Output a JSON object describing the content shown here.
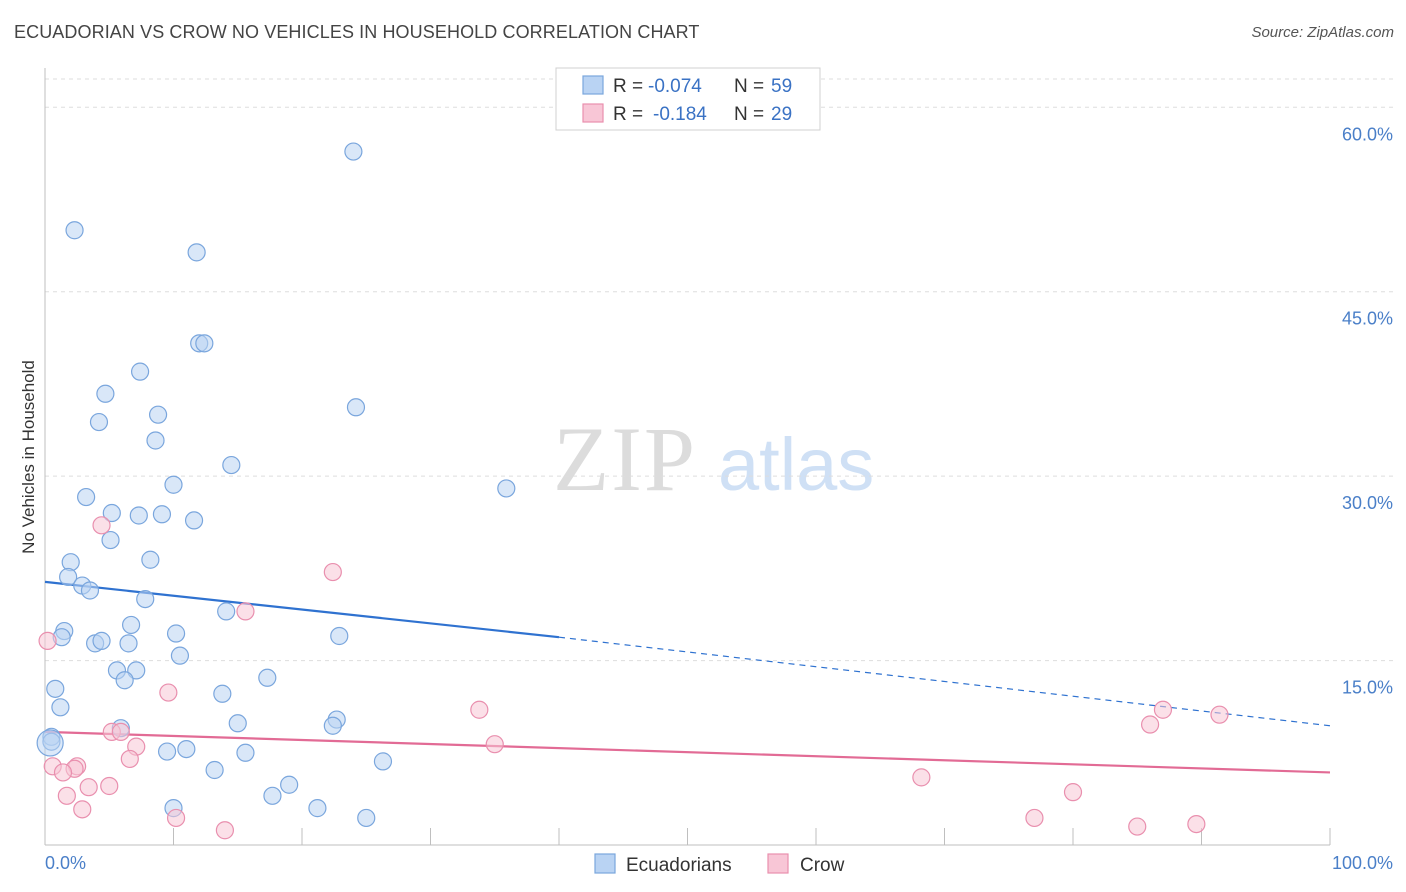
{
  "title": "ECUADORIAN VS CROW NO VEHICLES IN HOUSEHOLD CORRELATION CHART",
  "source": "Source: ZipAtlas.com",
  "watermark": {
    "zip": "ZIP",
    "atlas": "atlas"
  },
  "colors": {
    "blue_fill": "#b9d3f3",
    "blue_stroke": "#7aa6dd",
    "blue_line": "#2f72d0",
    "pink_fill": "#f8c6d6",
    "pink_stroke": "#e98fae",
    "pink_line": "#e26b95",
    "tick_text": "#4a7fc8",
    "grid": "#dddddd"
  },
  "legend": {
    "items": [
      {
        "r_label": "R =",
        "r_value": "-0.074",
        "n_label": "N =",
        "n_value": "59",
        "color": "blue"
      },
      {
        "r_label": "R =",
        "r_value": "-0.184",
        "n_label": "N =",
        "n_value": "29",
        "color": "pink"
      }
    ]
  },
  "bottom_legend": [
    "Ecuadorians",
    "Crow"
  ],
  "chart_data": {
    "type": "scatter",
    "title": "ECUADORIAN VS CROW NO VEHICLES IN HOUSEHOLD CORRELATION CHART",
    "xlabel": "",
    "ylabel": "No Vehicles in Household",
    "xlim": [
      0,
      100
    ],
    "ylim": [
      0,
      60
    ],
    "x_tick_labels": [
      "0.0%",
      "100.0%"
    ],
    "y_ticks": [
      15,
      30,
      45,
      60
    ],
    "y_tick_labels": [
      "15.0%",
      "30.0%",
      "45.0%",
      "60.0%"
    ],
    "grid": true,
    "legend_position": "top-center",
    "series": [
      {
        "name": "Ecuadorians",
        "color": "blue",
        "trend": {
          "x0": 0,
          "y0": 21.4,
          "x1": 40,
          "y1": 16.9,
          "dashed_to_x": 100,
          "dashed_to_y": 9.7
        },
        "points": [
          [
            24,
            56.4
          ],
          [
            2.3,
            50
          ],
          [
            11.8,
            48.2
          ],
          [
            12,
            40.8
          ],
          [
            12.4,
            40.8
          ],
          [
            7.4,
            38.5
          ],
          [
            4.7,
            36.7
          ],
          [
            24.2,
            35.6
          ],
          [
            4.2,
            34.4
          ],
          [
            8.8,
            35
          ],
          [
            8.6,
            32.9
          ],
          [
            14.5,
            30.9
          ],
          [
            10,
            29.3
          ],
          [
            35.9,
            29
          ],
          [
            3.2,
            28.3
          ],
          [
            5.2,
            27
          ],
          [
            7.3,
            26.8
          ],
          [
            9.1,
            26.9
          ],
          [
            11.6,
            26.4
          ],
          [
            5.1,
            24.8
          ],
          [
            8.2,
            23.2
          ],
          [
            2,
            23
          ],
          [
            1.8,
            21.8
          ],
          [
            2.9,
            21.1
          ],
          [
            3.5,
            20.7
          ],
          [
            7.8,
            20
          ],
          [
            14.1,
            19
          ],
          [
            1.5,
            17.4
          ],
          [
            6.7,
            17.9
          ],
          [
            10.2,
            17.2
          ],
          [
            22.9,
            17
          ],
          [
            1.3,
            16.9
          ],
          [
            3.9,
            16.4
          ],
          [
            4.4,
            16.6
          ],
          [
            6.5,
            16.4
          ],
          [
            10.5,
            15.4
          ],
          [
            5.6,
            14.2
          ],
          [
            7.1,
            14.2
          ],
          [
            6.2,
            13.4
          ],
          [
            17.3,
            13.6
          ],
          [
            0.8,
            12.7
          ],
          [
            13.8,
            12.3
          ],
          [
            1.2,
            11.2
          ],
          [
            15,
            9.9
          ],
          [
            22.7,
            10.2
          ],
          [
            22.4,
            9.7
          ],
          [
            5.9,
            9.5
          ],
          [
            0.5,
            8.8
          ],
          [
            0.5,
            8.4
          ],
          [
            11,
            7.8
          ],
          [
            9.5,
            7.6
          ],
          [
            15.6,
            7.5
          ],
          [
            26.3,
            6.8
          ],
          [
            13.2,
            6.1
          ],
          [
            19,
            4.9
          ],
          [
            17.7,
            4
          ],
          [
            10,
            3
          ],
          [
            21.2,
            3
          ],
          [
            25,
            2.2
          ]
        ]
      },
      {
        "name": "Crow",
        "color": "pink",
        "trend": {
          "x0": 0,
          "y0": 9.2,
          "x1": 100,
          "y1": 5.9
        },
        "points": [
          [
            0.2,
            16.6
          ],
          [
            4.4,
            26
          ],
          [
            22.4,
            22.2
          ],
          [
            15.6,
            19
          ],
          [
            9.6,
            12.4
          ],
          [
            33.8,
            11
          ],
          [
            87,
            11
          ],
          [
            91.4,
            10.6
          ],
          [
            86,
            9.8
          ],
          [
            5.2,
            9.2
          ],
          [
            5.9,
            9.2
          ],
          [
            7.1,
            8
          ],
          [
            35,
            8.2
          ],
          [
            6.6,
            7
          ],
          [
            0.6,
            6.4
          ],
          [
            2.5,
            6.4
          ],
          [
            2.3,
            6.2
          ],
          [
            1.4,
            5.9
          ],
          [
            68.2,
            5.5
          ],
          [
            3.4,
            4.7
          ],
          [
            5,
            4.8
          ],
          [
            80,
            4.3
          ],
          [
            1.7,
            4
          ],
          [
            2.9,
            2.9
          ],
          [
            10.2,
            2.2
          ],
          [
            77,
            2.2
          ],
          [
            14,
            1.2
          ],
          [
            85,
            1.5
          ],
          [
            89.6,
            1.7
          ]
        ]
      }
    ]
  }
}
